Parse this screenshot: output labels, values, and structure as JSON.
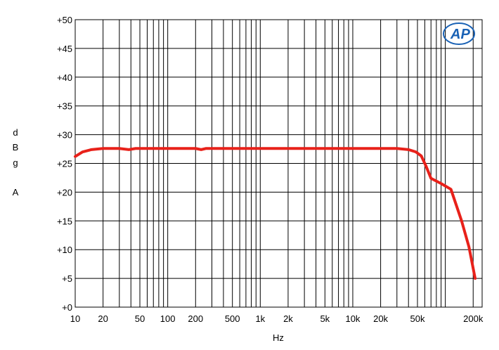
{
  "chart_data": {
    "type": "line",
    "xscale": "log",
    "xlim": [
      10,
      250000
    ],
    "ylim": [
      0,
      50
    ],
    "grid": true,
    "xlabel": "Hz",
    "ylabel_lines": [
      "d",
      "B",
      "g",
      "",
      "A"
    ],
    "yticks": [
      "+0",
      "+5",
      "+10",
      "+15",
      "+20",
      "+25",
      "+30",
      "+35",
      "+40",
      "+45",
      "+50"
    ],
    "ytick_values": [
      0,
      5,
      10,
      15,
      20,
      25,
      30,
      35,
      40,
      45,
      50
    ],
    "xticks": [
      {
        "value": 10,
        "label": "10"
      },
      {
        "value": 20,
        "label": "20"
      },
      {
        "value": 50,
        "label": "50"
      },
      {
        "value": 100,
        "label": "100"
      },
      {
        "value": 200,
        "label": "200"
      },
      {
        "value": 500,
        "label": "500"
      },
      {
        "value": 1000,
        "label": "1k"
      },
      {
        "value": 2000,
        "label": "2k"
      },
      {
        "value": 5000,
        "label": "5k"
      },
      {
        "value": 10000,
        "label": "10k"
      },
      {
        "value": 20000,
        "label": "20k"
      },
      {
        "value": 50000,
        "label": "50k"
      },
      {
        "value": 200000,
        "label": "200k"
      }
    ],
    "series": [
      {
        "color": "#e8211a",
        "points": [
          [
            10,
            26.2
          ],
          [
            12,
            27.0
          ],
          [
            15,
            27.4
          ],
          [
            20,
            27.6
          ],
          [
            30,
            27.6
          ],
          [
            38,
            27.4
          ],
          [
            45,
            27.6
          ],
          [
            100,
            27.6
          ],
          [
            200,
            27.6
          ],
          [
            230,
            27.4
          ],
          [
            260,
            27.6
          ],
          [
            500,
            27.6
          ],
          [
            1000,
            27.6
          ],
          [
            5000,
            27.6
          ],
          [
            10000,
            27.6
          ],
          [
            20000,
            27.6
          ],
          [
            30000,
            27.6
          ],
          [
            40000,
            27.4
          ],
          [
            48000,
            27.0
          ],
          [
            55000,
            26.3
          ],
          [
            62000,
            24.5
          ],
          [
            70000,
            22.4
          ],
          [
            90000,
            21.5
          ],
          [
            115000,
            20.5
          ],
          [
            150000,
            15.0
          ],
          [
            180000,
            10.5
          ],
          [
            210000,
            5.0
          ]
        ]
      }
    ]
  },
  "logo": {
    "text": "AP",
    "color": "#1a62b5"
  }
}
